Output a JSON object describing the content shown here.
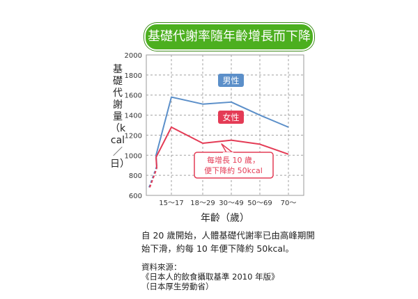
{
  "title": "基礎代謝率隨年齡增長而下降",
  "caption": "自 20 歲開始，人體基礎代謝率已由高峰期開始下滑，約每 10 年便下降約 50kcal。",
  "source": {
    "label": "資料來源：",
    "line1": "《日本人的飲食攝取基準 2010 年版》",
    "line2": "（日本厚生勞動省）"
  },
  "colors": {
    "title_bg": "#4caf1f",
    "male": "#5b8fc9",
    "female": "#e43b55",
    "grid": "#9a9a9a"
  },
  "chart_data": {
    "type": "line",
    "title": "基礎代謝率隨年齡增長而下降",
    "xlabel": "年齡（歲）",
    "ylabel": "基礎代謝量（kcal／日）",
    "categories": [
      "15～17",
      "18～29",
      "30～49",
      "50～69",
      "70～"
    ],
    "ylim": [
      600,
      2000
    ],
    "yticks": [
      600,
      800,
      1000,
      1200,
      1400,
      1600,
      1800,
      2000
    ],
    "grid": true,
    "series": [
      {
        "name": "男性",
        "color": "#5b8fc9",
        "values": [
          1580,
          1510,
          1530,
          1400,
          1280
        ],
        "lead_in": [
          890,
          1000
        ],
        "lead_dashed": [
          680,
          890
        ]
      },
      {
        "name": "女性",
        "color": "#e43b55",
        "values": [
          1280,
          1120,
          1150,
          1110,
          1010
        ],
        "lead_in": [
          870,
          980
        ],
        "lead_dashed": [
          680,
          870
        ]
      }
    ],
    "annotation": {
      "line1": "每增長 10 歲，",
      "line2": "便下降約 50kcal"
    }
  }
}
